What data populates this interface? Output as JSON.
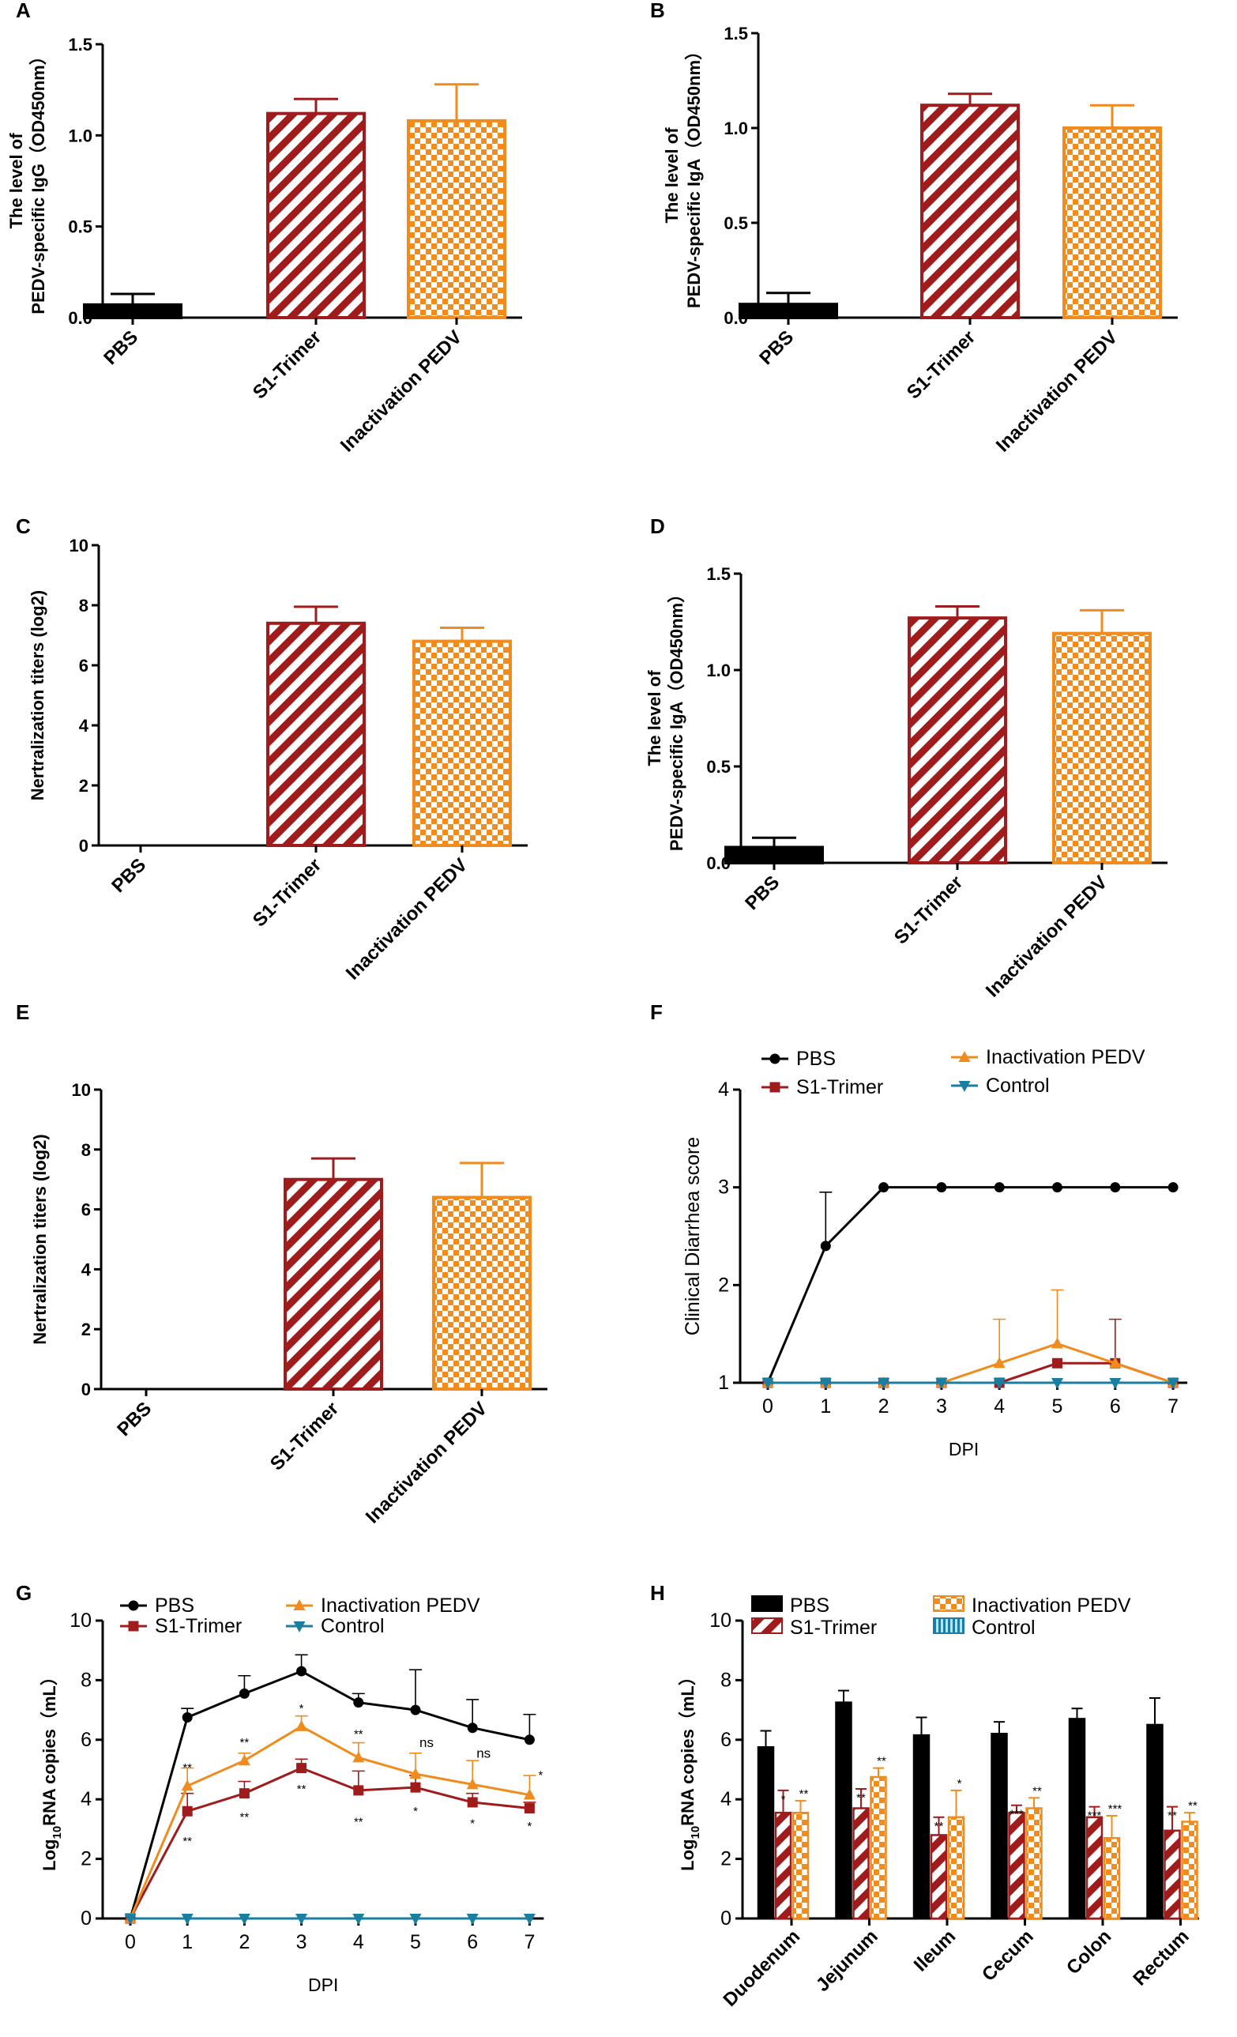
{
  "colors": {
    "PBS": "#000000",
    "S1-Trimer": "#a01c1c",
    "Inactivation PEDV": "#f08c1e",
    "Control": "#1a7ea0"
  },
  "chart_data": [
    {
      "id": "A",
      "label": "A",
      "type": "bar",
      "categories": [
        "PBS",
        "S1-Trimer",
        "Inactivation PEDV"
      ],
      "values": [
        0.07,
        1.12,
        1.08
      ],
      "errors": [
        0.06,
        0.08,
        0.2
      ],
      "ylabel_lines": [
        "The level of",
        "PEDV-specific IgG（OD450nm）"
      ],
      "ylim": [
        0,
        1.5
      ],
      "yticks": [
        0,
        0.5,
        1,
        1.5
      ],
      "ytick_labels": [
        "0.0",
        "0.5",
        "1.0",
        "1.5"
      ]
    },
    {
      "id": "B",
      "label": "B",
      "type": "bar",
      "categories": [
        "PBS",
        "S1-Trimer",
        "Inactivation PEDV"
      ],
      "values": [
        0.07,
        1.12,
        1.0
      ],
      "errors": [
        0.06,
        0.06,
        0.12
      ],
      "ylabel_lines": [
        "The level of",
        "PEDV-specific IgA（OD450nm）"
      ],
      "ylim": [
        0,
        1.5
      ],
      "yticks": [
        0,
        0.5,
        1,
        1.5
      ],
      "ytick_labels": [
        "0.0",
        "0.5",
        "1.0",
        "1.5"
      ]
    },
    {
      "id": "C",
      "label": "C",
      "type": "bar",
      "categories": [
        "PBS",
        "S1-Trimer",
        "Inactivation PEDV"
      ],
      "values": [
        0,
        7.4,
        6.8
      ],
      "errors": [
        0,
        0.55,
        0.45
      ],
      "ylabel_lines": [
        "Nertralization titers (log2)"
      ],
      "ylim": [
        0,
        10
      ],
      "yticks": [
        0,
        2,
        4,
        6,
        8,
        10
      ],
      "ytick_labels": [
        "0",
        "2",
        "4",
        "6",
        "8",
        "10"
      ]
    },
    {
      "id": "D",
      "label": "D",
      "type": "bar",
      "categories": [
        "PBS",
        "S1-Trimer",
        "Inactivation PEDV"
      ],
      "values": [
        0.08,
        1.27,
        1.19
      ],
      "errors": [
        0.05,
        0.06,
        0.12
      ],
      "ylabel_lines": [
        "The level of",
        "PEDV-specific IgA（OD450nm）"
      ],
      "ylim": [
        0,
        1.5
      ],
      "yticks": [
        0,
        0.5,
        1,
        1.5
      ],
      "ytick_labels": [
        "0.0",
        "0.5",
        "1.0",
        "1.5"
      ]
    },
    {
      "id": "E",
      "label": "E",
      "type": "bar",
      "categories": [
        "PBS",
        "S1-Trimer",
        "Inactivation PEDV"
      ],
      "values": [
        0,
        7.0,
        6.4
      ],
      "errors": [
        0,
        0.7,
        1.15
      ],
      "ylabel_lines": [
        "Nertralization titers (log2)"
      ],
      "ylim": [
        0,
        10
      ],
      "yticks": [
        0,
        2,
        4,
        6,
        8,
        10
      ],
      "ytick_labels": [
        "0",
        "2",
        "4",
        "6",
        "8",
        "10"
      ]
    },
    {
      "id": "F",
      "label": "F",
      "type": "line",
      "x": [
        0,
        1,
        2,
        3,
        4,
        5,
        6,
        7
      ],
      "xlabel": "DPI",
      "ylabel": "Clinical Diarrhea score",
      "ylim": [
        1,
        4
      ],
      "yticks": [
        1,
        2,
        3,
        4
      ],
      "ytick_labels": [
        "1",
        "2",
        "3",
        "4"
      ],
      "legend": [
        "PBS",
        "S1-Trimer",
        "Inactivation PEDV",
        "Control"
      ],
      "series": [
        {
          "name": "PBS",
          "values": [
            1,
            2.4,
            3,
            3,
            3,
            3,
            3,
            3
          ],
          "errors": [
            0,
            0.55,
            0,
            0,
            0,
            0,
            0,
            0
          ]
        },
        {
          "name": "S1-Trimer",
          "values": [
            1,
            1,
            1,
            1,
            1,
            1.2,
            1.2,
            1
          ],
          "errors": [
            0,
            0,
            0,
            0,
            0,
            0,
            0.45,
            0
          ]
        },
        {
          "name": "Inactivation PEDV",
          "values": [
            1,
            1,
            1,
            1,
            1.2,
            1.4,
            1.2,
            1
          ],
          "errors": [
            0,
            0,
            0,
            0,
            0.45,
            0.55,
            0,
            0
          ]
        },
        {
          "name": "Control",
          "values": [
            1,
            1,
            1,
            1,
            1,
            1,
            1,
            1
          ],
          "errors": [
            0,
            0,
            0,
            0,
            0,
            0,
            0,
            0
          ]
        }
      ]
    },
    {
      "id": "G",
      "label": "G",
      "type": "line",
      "x": [
        0,
        1,
        2,
        3,
        4,
        5,
        6,
        7
      ],
      "xlabel": "DPI",
      "ylabel_main": "Log",
      "ylabel_sub": "10",
      "ylabel_rest": "RNA copies（mL）",
      "ylim": [
        0,
        10
      ],
      "yticks": [
        0,
        2,
        4,
        6,
        8,
        10
      ],
      "ytick_labels": [
        "0",
        "2",
        "4",
        "6",
        "8",
        "10"
      ],
      "legend": [
        "PBS",
        "S1-Trimer",
        "Inactivation PEDV",
        "Control"
      ],
      "series": [
        {
          "name": "PBS",
          "values": [
            0,
            6.75,
            7.55,
            8.3,
            7.25,
            7.0,
            6.4,
            6.0
          ],
          "errors": [
            0,
            0.3,
            0.6,
            0.55,
            0.3,
            1.35,
            0.95,
            0.85
          ]
        },
        {
          "name": "S1-Trimer",
          "values": [
            0,
            3.6,
            4.2,
            5.05,
            4.3,
            4.4,
            3.9,
            3.7
          ],
          "errors": [
            0,
            0.6,
            0.4,
            0.3,
            0.65,
            0.4,
            0.3,
            0.2
          ]
        },
        {
          "name": "Inactivation PEDV",
          "values": [
            0,
            4.45,
            5.3,
            6.45,
            5.4,
            4.85,
            4.5,
            4.15
          ],
          "errors": [
            0,
            0.6,
            0.25,
            0.35,
            0.5,
            0.7,
            0.8,
            0.65
          ]
        },
        {
          "name": "Control",
          "values": [
            0,
            0,
            0,
            0,
            0,
            0,
            0,
            0
          ],
          "errors": [
            0,
            0,
            0,
            0,
            0,
            0,
            0,
            0
          ]
        }
      ],
      "annotations_inact": [
        "",
        "**",
        "**",
        "*",
        "**",
        "ns",
        "ns",
        "*"
      ],
      "annotations_s1": [
        "",
        "**",
        "**",
        "**",
        "**",
        "*",
        "*",
        "*"
      ]
    },
    {
      "id": "H",
      "label": "H",
      "type": "bar",
      "categories": [
        "Duodenum",
        "Jejunum",
        "Ileum",
        "Cecum",
        "Colon",
        "Rectum"
      ],
      "ylabel_main": "Log",
      "ylabel_sub": "10",
      "ylabel_rest": "RNA copies（mL）",
      "ylim": [
        0,
        10
      ],
      "yticks": [
        0,
        2,
        4,
        6,
        8,
        10
      ],
      "ytick_labels": [
        "0",
        "2",
        "4",
        "6",
        "8",
        "10"
      ],
      "legend": [
        "PBS",
        "S1-Trimer",
        "Inactivation PEDV",
        "Control"
      ],
      "series": [
        {
          "name": "PBS",
          "values": [
            5.75,
            7.25,
            6.15,
            6.2,
            6.7,
            6.5
          ],
          "errors": [
            0.55,
            0.4,
            0.6,
            0.4,
            0.35,
            0.9
          ]
        },
        {
          "name": "S1-Trimer",
          "values": [
            3.55,
            3.7,
            2.8,
            3.55,
            3.4,
            2.95
          ],
          "errors": [
            0.75,
            0.65,
            0.6,
            0.25,
            0.35,
            0.8
          ]
        },
        {
          "name": "Inactivation PEDV",
          "values": [
            3.55,
            4.75,
            3.4,
            3.7,
            2.7,
            3.25
          ],
          "errors": [
            0.4,
            0.3,
            0.9,
            0.35,
            0.75,
            0.3
          ]
        },
        {
          "name": "Control",
          "values": [
            0,
            0,
            0,
            0,
            0,
            0
          ],
          "errors": [
            0,
            0,
            0,
            0,
            0,
            0
          ]
        }
      ],
      "annotations_s1": [
        "*",
        "**",
        "**",
        "***",
        "***",
        "**"
      ],
      "annotations_inact": [
        "**",
        "**",
        "*",
        "**",
        "***",
        "**"
      ]
    }
  ]
}
